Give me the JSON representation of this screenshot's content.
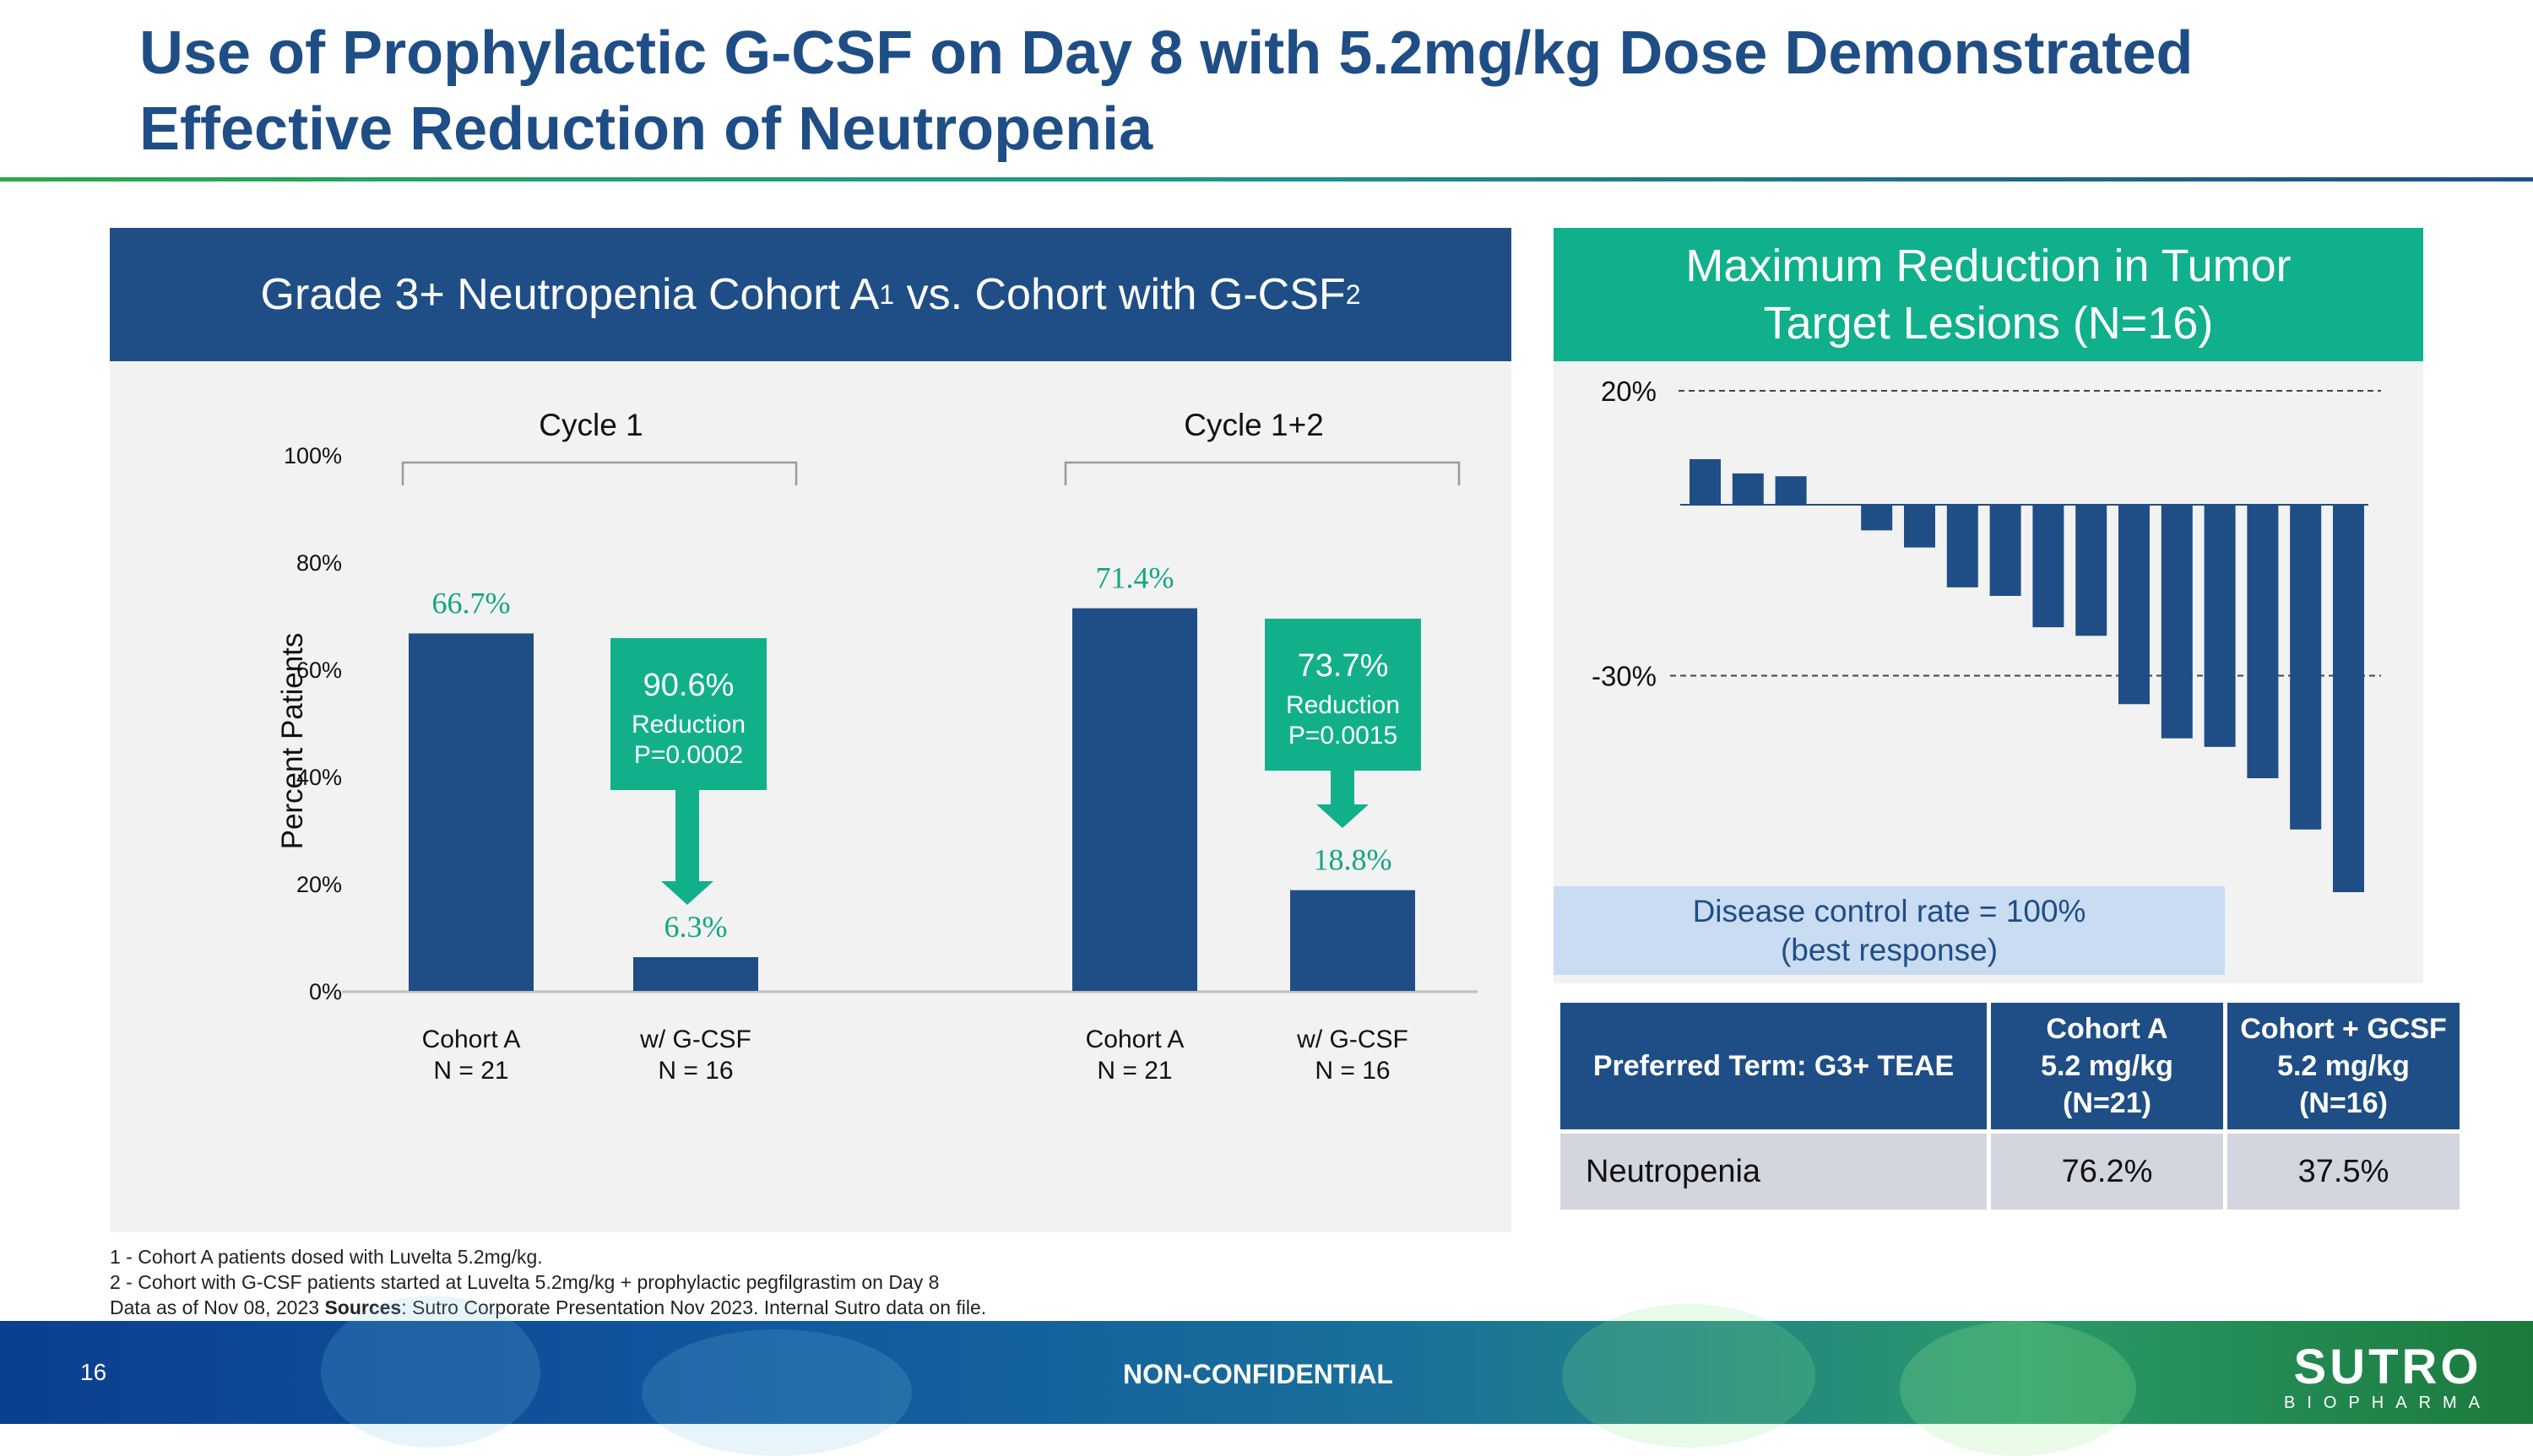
{
  "title": "Use of Prophylactic G-CSF on Day 8 with 5.2mg/kg Dose Demonstrated Effective Reduction of Neutropenia",
  "left_panel": {
    "header": "Grade 3+ Neutropenia Cohort A",
    "header_sup1": "1",
    "header_mid": " vs. Cohort with G-CSF",
    "header_sup2": "2"
  },
  "right_panel": {
    "header_line1": "Maximum Reduction in Tumor",
    "header_line2": "Target Lesions (N=16)",
    "dcr_line1": "Disease control rate = 100%",
    "dcr_line2": "(best response)"
  },
  "chart_data": [
    {
      "type": "bar",
      "ylabel": "Percent Patients",
      "ylim": [
        0,
        100
      ],
      "yticks": [
        "0%",
        "20%",
        "40%",
        "60%",
        "80%",
        "100%"
      ],
      "groups": [
        "Cycle 1",
        "Cycle 1+2"
      ],
      "categories": [
        {
          "line1": "Cohort A",
          "line2": "N = 21"
        },
        {
          "line1": "w/ G-CSF",
          "line2": "N = 16"
        },
        {
          "line1": "Cohort A",
          "line2": "N = 21"
        },
        {
          "line1": "w/ G-CSF",
          "line2": "N = 16"
        }
      ],
      "values": [
        66.7,
        6.3,
        71.4,
        18.8
      ],
      "data_labels": [
        "66.7%",
        "6.3%",
        "71.4%",
        "18.8%"
      ],
      "annotations": [
        {
          "pct": "90.6%",
          "text": "Reduction",
          "p": "P=0.0002"
        },
        {
          "pct": "73.7%",
          "text": "Reduction",
          "p": "P=0.0015"
        }
      ],
      "bar_color": "#1f4e86",
      "label_color": "#12a585",
      "callout_color": "#12b08a"
    },
    {
      "type": "bar",
      "ylim": [
        40,
        -75
      ],
      "reference_lines": [
        {
          "value": 20,
          "label": "20%"
        },
        {
          "value": -30,
          "label": "-30%"
        }
      ],
      "values": [
        8,
        5.5,
        5,
        -4.5,
        -7.5,
        -14.5,
        -16,
        -21.5,
        -23,
        -35,
        -41,
        -42.5,
        -48,
        -57,
        -68
      ],
      "bar_color": "#1f4e86"
    }
  ],
  "table": {
    "headers": [
      {
        "line1": "Preferred Term: G3+ TEAE",
        "line2": "",
        "line3": ""
      },
      {
        "line1": "Cohort A",
        "line2": "5.2 mg/kg",
        "line3": "(N=21)"
      },
      {
        "line1": "Cohort + GCSF",
        "line2": "5.2 mg/kg",
        "line3": "(N=16)"
      }
    ],
    "rows": [
      [
        "Neutropenia",
        "76.2%",
        "37.5%"
      ]
    ]
  },
  "footnotes": {
    "line1": "1 - Cohort A patients dosed with Luvelta 5.2mg/kg.",
    "line2": "2 - Cohort with G-CSF patients started at Luvelta 5.2mg/kg + prophylactic pegfilgrastim  on Day 8",
    "line3_pre": "Data as of Nov 08, 2023 ",
    "line3_bold": "Sources",
    "line3_post": ": Sutro Corporate Presentation Nov 2023. Internal Sutro data on file."
  },
  "footer": {
    "page_number": "16",
    "classification": "NON-CONFIDENTIAL",
    "logo_main": "SUTRO",
    "logo_sub": "BIOPHARMA"
  }
}
